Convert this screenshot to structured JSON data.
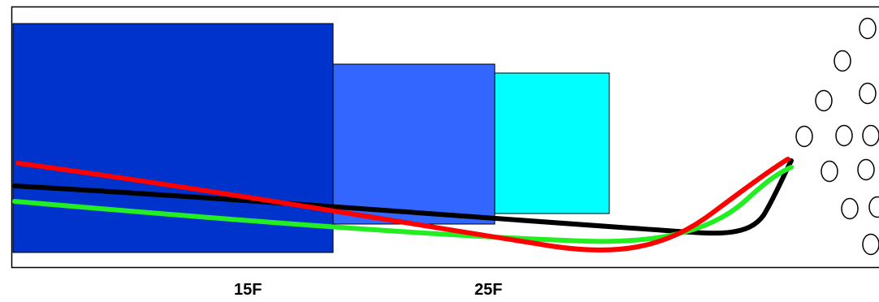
{
  "colors": {
    "background": "#ffffff",
    "frame_stroke": "#000000",
    "block_outline": "#000000",
    "circle_stroke": "#000000",
    "circle_fill": "#ffffff"
  },
  "labels": {
    "zone_15f": "15F",
    "zone_25f": "25F"
  },
  "blocks": [
    {
      "id": "block-dark-blue",
      "color": "#0033cc"
    },
    {
      "id": "block-medium-blue",
      "color": "#3366ff"
    },
    {
      "id": "block-cyan",
      "color": "#00ffff"
    }
  ],
  "curves": [
    {
      "id": "black-curve",
      "color": "#000000"
    },
    {
      "id": "green-curve",
      "color": "#22ee22"
    },
    {
      "id": "red-curve",
      "color": "#ff0000"
    }
  ],
  "circles_count": 12
}
